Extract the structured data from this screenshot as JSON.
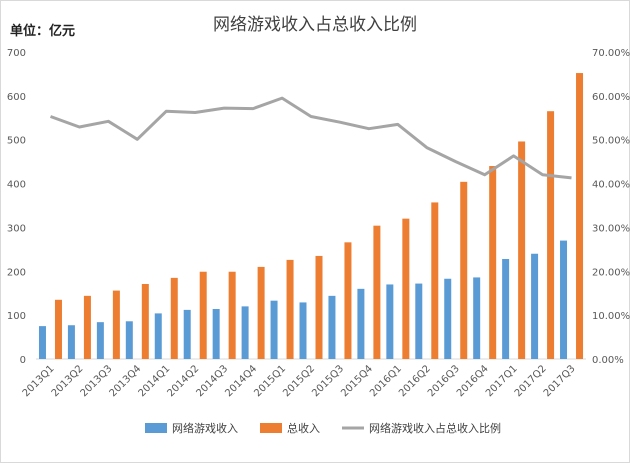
{
  "unit_label": "单位：亿元",
  "chart_data": {
    "type": "bar",
    "title": "网络游戏收入占总收入比例",
    "categories": [
      "2013Q1",
      "2013Q2",
      "2013Q3",
      "2013Q4",
      "2014Q1",
      "2014Q2",
      "2014Q3",
      "2014Q4",
      "2015Q1",
      "2015Q2",
      "2015Q3",
      "2015Q4",
      "2016Q1",
      "2016Q2",
      "2016Q3",
      "2016Q4",
      "2017Q1",
      "2017Q2",
      "2017Q3"
    ],
    "series": [
      {
        "name": "网络游戏收入",
        "type": "bar",
        "axis": "left",
        "color": "#5b9bd5",
        "values": [
          75,
          77,
          84,
          86,
          104,
          112,
          114,
          120,
          133,
          129,
          144,
          160,
          170,
          172,
          183,
          186,
          228,
          240,
          270
        ]
      },
      {
        "name": "总收入",
        "type": "bar",
        "axis": "left",
        "color": "#ed7d31",
        "values": [
          135,
          144,
          156,
          171,
          185,
          199,
          199,
          210,
          226,
          235,
          266,
          304,
          320,
          357,
          404,
          440,
          496,
          565,
          652
        ]
      },
      {
        "name": "网络游戏收入占总收入比例",
        "type": "line",
        "axis": "right",
        "color": "#a5a5a5",
        "values": [
          0.553,
          0.529,
          0.542,
          0.501,
          0.565,
          0.562,
          0.572,
          0.571,
          0.595,
          0.553,
          0.54,
          0.525,
          0.535,
          0.482,
          0.45,
          0.42,
          0.463,
          0.42,
          0.413
        ]
      }
    ],
    "y_left": {
      "min": 0,
      "max": 700,
      "ticks": [
        "0",
        "100",
        "200",
        "300",
        "400",
        "500",
        "600",
        "700"
      ]
    },
    "y_right": {
      "min": 0,
      "max": 0.7,
      "ticks": [
        "0.00%",
        "10.00%",
        "20.00%",
        "30.00%",
        "40.00%",
        "50.00%",
        "60.00%",
        "70.00%"
      ]
    },
    "grid": false,
    "legend_position": "bottom"
  }
}
